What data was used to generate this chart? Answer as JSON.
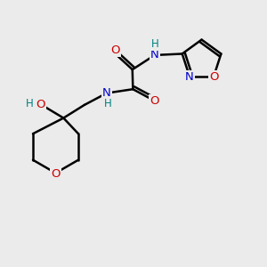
{
  "bg_color": "#ebebeb",
  "bond_color": "#000000",
  "bond_width": 1.8,
  "atom_colors": {
    "C": "#000000",
    "N": "#0000cc",
    "O": "#cc0000",
    "H": "#008080"
  },
  "fig_size": [
    3.0,
    3.0
  ],
  "dpi": 100,
  "font_size_atom": 9.5,
  "font_size_h": 8.5
}
